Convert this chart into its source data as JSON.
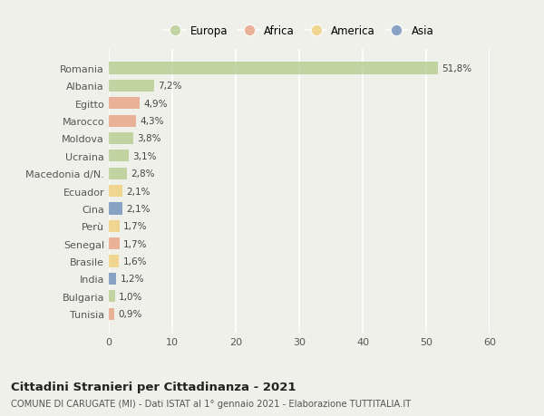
{
  "countries": [
    "Romania",
    "Albania",
    "Egitto",
    "Marocco",
    "Moldova",
    "Ucraina",
    "Macedonia d/N.",
    "Ecuador",
    "Cina",
    "Perù",
    "Senegal",
    "Brasile",
    "India",
    "Bulgaria",
    "Tunisia"
  ],
  "values": [
    51.8,
    7.2,
    4.9,
    4.3,
    3.8,
    3.1,
    2.8,
    2.1,
    2.1,
    1.7,
    1.7,
    1.6,
    1.2,
    1.0,
    0.9
  ],
  "labels": [
    "51,8%",
    "7,2%",
    "4,9%",
    "4,3%",
    "3,8%",
    "3,1%",
    "2,8%",
    "2,1%",
    "2,1%",
    "1,7%",
    "1,7%",
    "1,6%",
    "1,2%",
    "1,0%",
    "0,9%"
  ],
  "continents": [
    "Europa",
    "Europa",
    "Africa",
    "Africa",
    "Europa",
    "Europa",
    "Europa",
    "America",
    "Asia",
    "America",
    "Africa",
    "America",
    "Asia",
    "Europa",
    "Africa"
  ],
  "continent_colors": {
    "Europa": "#b5cc8e",
    "Africa": "#e8a080",
    "America": "#f0ce78",
    "Asia": "#6b8cba"
  },
  "legend_order": [
    "Europa",
    "Africa",
    "America",
    "Asia"
  ],
  "title": "Cittadini Stranieri per Cittadinanza - 2021",
  "subtitle": "COMUNE DI CARUGATE (MI) - Dati ISTAT al 1° gennaio 2021 - Elaborazione TUTTITALIA.IT",
  "xlim": [
    0,
    60
  ],
  "xticks": [
    0,
    10,
    20,
    30,
    40,
    50,
    60
  ],
  "background_color": "#f0f0eb",
  "grid_color": "#ffffff",
  "bar_alpha": 0.78
}
